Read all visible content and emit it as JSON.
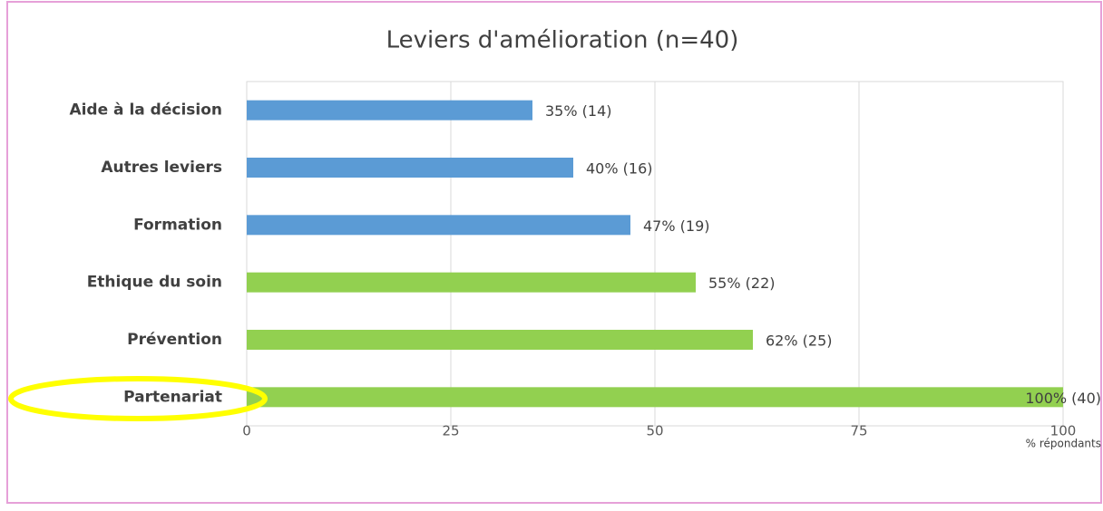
{
  "chart_data": {
    "type": "bar",
    "orientation": "horizontal",
    "title": "Leviers d'amélioration (n=40)",
    "categories": [
      "Aide à la décision",
      "Autres leviers",
      "Formation",
      "Ethique du soin",
      "Prévention",
      "Partenariat"
    ],
    "values": [
      35,
      40,
      47,
      55,
      62,
      100
    ],
    "value_labels": [
      "35% (14)",
      "40% (16)",
      "47% (19)",
      "55% (22)",
      "62% (25)",
      "100% (40)"
    ],
    "colors": [
      "#5b9bd5",
      "#5b9bd5",
      "#5b9bd5",
      "#92d050",
      "#92d050",
      "#92d050"
    ],
    "x_label": "% répondants",
    "xlim": [
      0,
      100
    ],
    "xticks": [
      0,
      25,
      50,
      75,
      100
    ],
    "grid": true
  }
}
